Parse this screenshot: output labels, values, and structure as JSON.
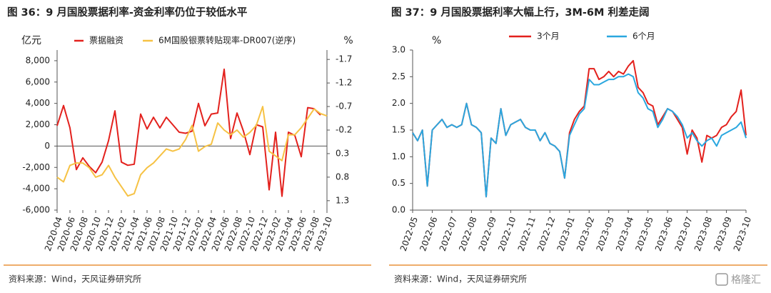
{
  "chart_data": [
    {
      "type": "line",
      "title": "图 36：9 月国股票据利率-资金利率仍位于较低水平",
      "ylabel": "亿元",
      "y2label": "%",
      "source": "资料来源：Wind，天风证券研究所",
      "categories": [
        "2020-04",
        null,
        "2020-06",
        null,
        "2020-08",
        null,
        "2020-10",
        null,
        "2020-12",
        null,
        "2021-02",
        null,
        "2021-04",
        null,
        "2021-06",
        null,
        "2021-08",
        null,
        "2021-10",
        null,
        "2021-12",
        null,
        "2022-02",
        null,
        "2022-04",
        null,
        "2022-06",
        null,
        "2022-08",
        null,
        "2022-10",
        null,
        "2022-12",
        null,
        "2023-02",
        null,
        "2023-04",
        null,
        "2023-06",
        null,
        "2023-08",
        null,
        "2023-10"
      ],
      "series": [
        {
          "name": "票据融资",
          "color": "#e3211d",
          "values": [
            1900,
            3800,
            1700,
            -2200,
            -1100,
            -1900,
            -2500,
            -1500,
            500,
            3300,
            -1500,
            -1800,
            -1700,
            3000,
            1600,
            2700,
            1700,
            2700,
            2000,
            1300,
            1200,
            1400,
            4000,
            1900,
            3000,
            3100,
            7200,
            700,
            3100,
            1400,
            -800,
            2000,
            1800,
            -4100,
            1300,
            -4700,
            1300,
            1000,
            -1000,
            3600,
            3500,
            2900,
            null
          ]
        },
        {
          "name": "6M国股银票转贴现率-DR007(逆序)",
          "color": "#f6c244",
          "axis": "y2",
          "values": [
            0.8,
            0.9,
            0.55,
            0.5,
            0.5,
            0.6,
            0.8,
            0.75,
            0.55,
            0.8,
            1.0,
            1.2,
            1.15,
            0.75,
            0.6,
            0.5,
            0.35,
            0.2,
            0.25,
            0.2,
            0.0,
            -0.3,
            0.25,
            0.15,
            0.1,
            -0.35,
            -0.2,
            -0.1,
            -0.2,
            -0.05,
            -0.15,
            -0.3,
            -0.7,
            0.25,
            0.35,
            0.45,
            -0.1,
            -0.1,
            -0.25,
            -0.45,
            -0.65,
            -0.55,
            -0.5
          ]
        }
      ],
      "ylim": [
        -6000,
        9000
      ],
      "yticks": [
        {
          "value": -6000,
          "label": "-6,000"
        },
        {
          "value": -4000,
          "label": "-4,000"
        },
        {
          "value": -2000,
          "label": "-2,000"
        },
        0,
        {
          "value": 2000,
          "label": "2,000"
        },
        {
          "value": 4000,
          "label": "4,000"
        },
        {
          "value": 6000,
          "label": "6,000"
        },
        {
          "value": 8000,
          "label": "8,000"
        }
      ],
      "y2lim": [
        -1.9,
        1.5
      ],
      "y2_inverted": true,
      "y2ticks": [
        -1.7,
        -1.2,
        -0.7,
        -0.2,
        0.3,
        0.8,
        1.3
      ]
    },
    {
      "type": "line",
      "title": "图 37：9 月国股票据利率大幅上行，3M-6M 利差走阔",
      "ylabel": "%",
      "source": "资料来源：Wind，天风证券研究所",
      "categories": [
        "2022-05",
        null,
        null,
        null,
        "2022-06",
        null,
        null,
        null,
        "2022-07",
        null,
        null,
        null,
        "2022-08",
        null,
        null,
        null,
        "2022-09",
        null,
        null,
        null,
        "2022-10",
        null,
        null,
        null,
        "2022-11",
        null,
        null,
        null,
        "2022-12",
        null,
        null,
        null,
        "2023-01",
        null,
        null,
        null,
        "2023-02",
        null,
        null,
        null,
        "2023-03",
        null,
        null,
        null,
        "2023-04",
        null,
        null,
        null,
        "2023-05",
        null,
        null,
        null,
        "2023-06",
        null,
        null,
        null,
        "2023-07",
        null,
        null,
        null,
        "2023-08",
        null,
        null,
        null,
        "2023-09",
        null,
        null,
        null,
        "2023-10"
      ],
      "series": [
        {
          "name": "3个月",
          "color": "#e3211d",
          "values": [
            1.45,
            1.3,
            1.5,
            0.45,
            1.5,
            1.6,
            1.7,
            1.55,
            1.6,
            1.55,
            1.6,
            2.0,
            1.6,
            1.55,
            1.45,
            0.25,
            1.35,
            1.25,
            1.9,
            1.4,
            1.6,
            1.65,
            1.7,
            1.55,
            1.5,
            1.5,
            1.3,
            1.45,
            1.25,
            1.2,
            1.1,
            0.6,
            1.45,
            1.7,
            1.85,
            1.95,
            2.65,
            2.65,
            2.45,
            2.5,
            2.6,
            2.5,
            2.6,
            2.55,
            2.7,
            2.8,
            2.3,
            2.2,
            2.0,
            1.95,
            1.6,
            1.75,
            1.9,
            1.85,
            1.7,
            1.55,
            1.05,
            1.5,
            1.35,
            0.9,
            1.4,
            1.35,
            1.4,
            1.55,
            1.6,
            1.75,
            1.85,
            2.25,
            1.4
          ]
        },
        {
          "name": "6个月",
          "color": "#2aa7df",
          "values": [
            1.45,
            1.3,
            1.5,
            0.45,
            1.5,
            1.6,
            1.7,
            1.55,
            1.6,
            1.55,
            1.6,
            2.0,
            1.6,
            1.55,
            1.45,
            0.25,
            1.35,
            1.25,
            1.9,
            1.4,
            1.6,
            1.65,
            1.7,
            1.55,
            1.5,
            1.5,
            1.3,
            1.45,
            1.25,
            1.2,
            1.1,
            0.6,
            1.4,
            1.6,
            1.8,
            1.9,
            2.45,
            2.35,
            2.35,
            2.4,
            2.45,
            2.45,
            2.5,
            2.5,
            2.55,
            2.5,
            2.2,
            2.1,
            1.9,
            1.85,
            1.55,
            1.7,
            1.9,
            1.85,
            1.75,
            1.6,
            1.35,
            1.45,
            1.3,
            1.2,
            1.3,
            1.35,
            1.2,
            1.4,
            1.45,
            1.5,
            1.55,
            1.65,
            1.35
          ]
        }
      ],
      "ylim": [
        0,
        3.0
      ],
      "yticks": [
        {
          "value": 0,
          "label": "0.0"
        },
        0.5,
        {
          "value": 1,
          "label": "1.0"
        },
        1.5,
        {
          "value": 2,
          "label": "2.0"
        },
        2.5,
        {
          "value": 3,
          "label": "3.0"
        }
      ]
    }
  ],
  "watermark": "格隆汇"
}
